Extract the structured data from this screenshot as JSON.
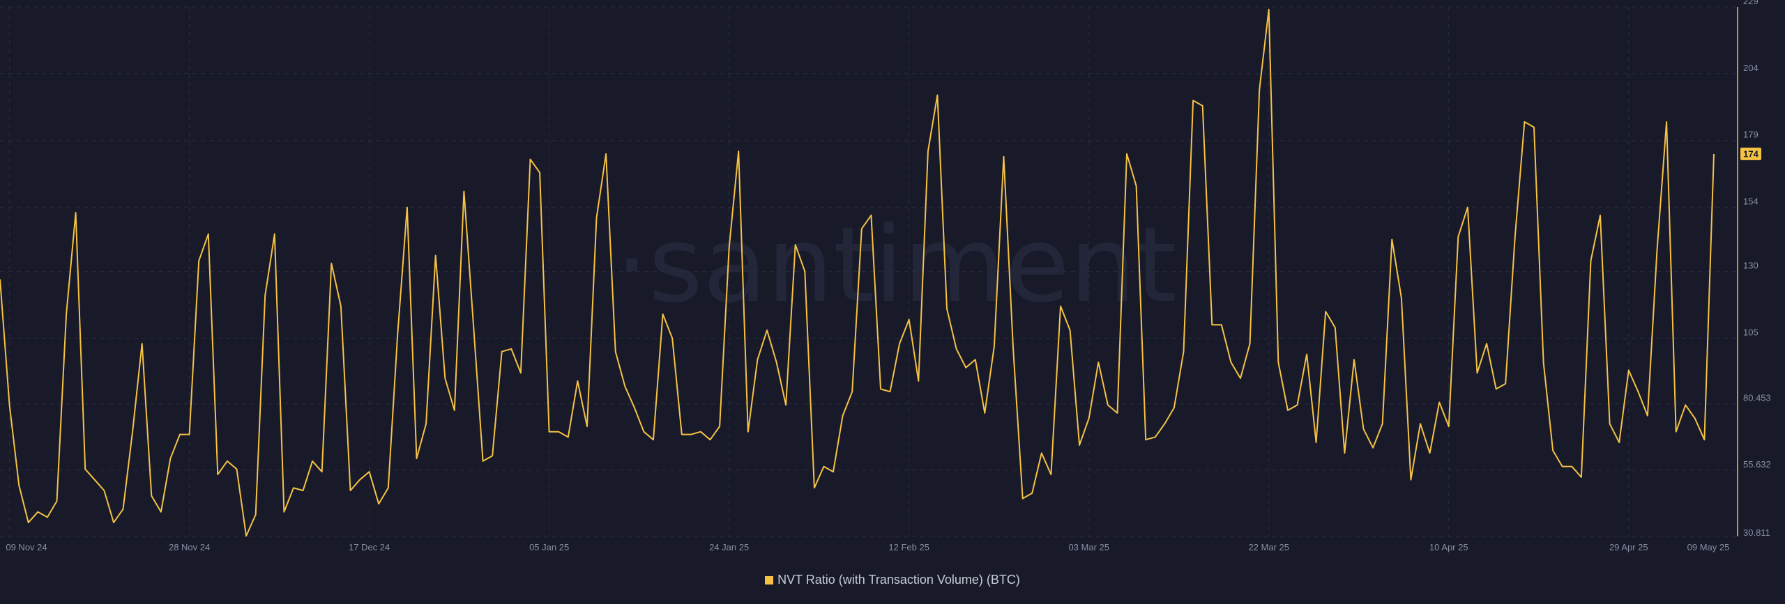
{
  "watermark": "·santiment",
  "legend": {
    "label": "NVT Ratio (with Transaction Volume) (BTC)",
    "color": "#f5c244"
  },
  "last_value_badge": "174",
  "chart_data": {
    "type": "line",
    "series": [
      {
        "name": "NVT Ratio (with Transaction Volume) (BTC)",
        "color": "#f5c244",
        "start_date": "2024-11-08",
        "values": [
          127,
          80,
          50,
          36,
          40,
          38,
          44,
          114,
          152,
          56,
          52,
          48,
          36,
          41,
          70,
          103,
          46,
          40,
          60,
          69,
          69,
          134,
          144,
          54,
          59,
          56,
          31,
          39,
          121,
          144,
          40,
          49,
          48,
          59,
          55,
          133,
          117,
          48,
          52,
          55,
          43,
          49,
          107,
          154,
          60,
          73,
          136,
          90,
          78,
          160,
          110,
          59,
          61,
          100,
          101,
          92,
          172,
          167,
          70,
          70,
          68,
          89,
          72,
          150,
          174,
          100,
          87,
          79,
          70,
          67,
          114,
          105,
          69,
          69,
          70,
          67,
          72,
          139,
          175,
          70,
          97,
          108,
          96,
          80,
          140,
          130,
          49,
          57,
          55,
          76,
          85,
          146,
          151,
          86,
          85,
          103,
          112,
          89,
          175,
          196,
          116,
          101,
          94,
          97,
          77,
          102,
          173,
          101,
          45,
          47,
          62,
          54,
          117,
          108,
          65,
          75,
          96,
          80,
          77,
          174,
          162,
          67,
          68,
          73,
          79,
          100,
          194,
          192,
          110,
          110,
          96,
          90,
          103,
          198,
          228,
          96,
          78,
          80,
          99,
          66,
          115,
          109,
          62,
          97,
          71,
          64,
          73,
          142,
          120,
          52,
          73,
          62,
          81,
          72,
          143,
          154,
          92,
          103,
          86,
          88,
          143,
          186,
          184,
          96,
          63,
          57,
          57,
          53,
          134,
          151,
          73,
          66,
          93,
          85,
          76,
          138,
          186,
          70,
          80,
          75,
          67,
          174
        ]
      }
    ],
    "x_tick_labels": [
      "09 Nov 24",
      "28 Nov 24",
      "17 Dec 24",
      "05 Jan 25",
      "24 Jan 25",
      "12 Feb 25",
      "03 Mar 25",
      "22 Mar 25",
      "10 Apr 25",
      "29 Apr 25",
      "09 May 25"
    ],
    "y_ticks": [
      30.811,
      55.632,
      80.453,
      105,
      130,
      154,
      179,
      204,
      229
    ],
    "y_tick_labels": [
      "30.811",
      "55.632",
      "80.453",
      "105",
      "130",
      "154",
      "179",
      "204",
      "229"
    ],
    "ylim": [
      30.811,
      229
    ],
    "grid": true,
    "legend_position": "bottom"
  }
}
